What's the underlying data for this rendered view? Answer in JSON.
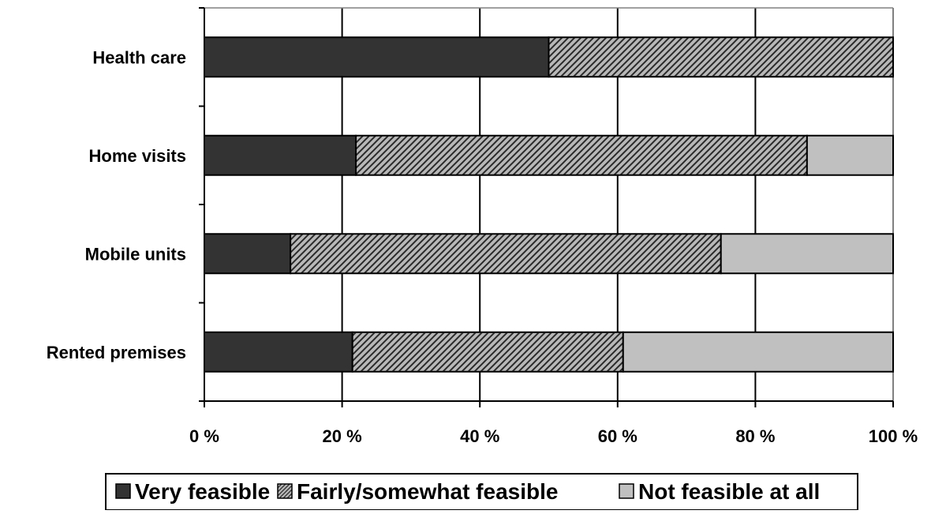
{
  "chart_data": {
    "type": "bar",
    "orientation": "horizontal",
    "stacked": true,
    "percent_stacked": true,
    "categories": [
      "Health care",
      "Home visits",
      "Mobile units",
      "Rented premises"
    ],
    "series": [
      {
        "name": "Very feasible",
        "values": [
          50,
          22,
          12.5,
          21.5
        ],
        "color": "#333333",
        "pattern": "solid"
      },
      {
        "name": "Fairly/somewhat feasible",
        "values": [
          50,
          65.5,
          62.5,
          39.3
        ],
        "color": "#b3b3b3",
        "pattern": "diagonal-hatch"
      },
      {
        "name": "Not feasible at all",
        "values": [
          0,
          12.5,
          25,
          39.2
        ],
        "color": "#c0c0c0",
        "pattern": "solid"
      }
    ],
    "xlim": [
      0,
      100
    ],
    "xticks": [
      0,
      20,
      40,
      60,
      80,
      100
    ],
    "xtick_labels": [
      "0 %",
      "20 %",
      "40 %",
      "60 %",
      "80 %",
      "100 %"
    ],
    "xlabel": "",
    "ylabel": "",
    "title": "",
    "grid": "vertical",
    "legend_position": "bottom"
  }
}
